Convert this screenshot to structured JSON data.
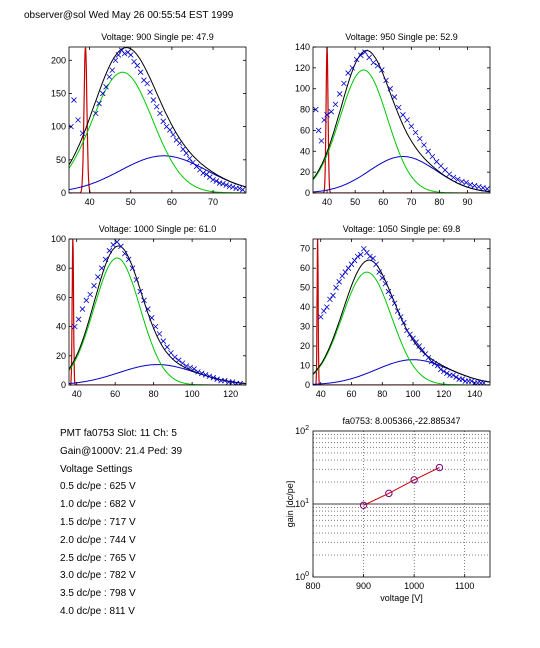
{
  "header": "observer@sol Wed May 26 00:55:54 EST 1999",
  "info": {
    "pmt_line": "PMT fa0753 Slot: 11 Ch: 5",
    "gain_line": "Gain@1000V: 21.4 Ped: 39",
    "settings_title": "Voltage Settings",
    "settings": [
      "0.5 dc/pe : 625 V",
      "1.0 dc/pe : 682 V",
      "1.5 dc/pe : 717 V",
      "2.0 dc/pe : 744 V",
      "2.5 dc/pe : 765 V",
      "3.0 dc/pe : 782 V",
      "3.5 dc/pe : 798 V",
      "4.0 dc/pe : 811 V"
    ]
  },
  "chart_data": [
    {
      "type": "line",
      "title": "Voltage: 900 Single pe: 47.9",
      "xlim": [
        35,
        78
      ],
      "ylim": [
        0,
        220
      ],
      "xticks": [
        40,
        50,
        60,
        70
      ],
      "yticks": [
        0,
        50,
        100,
        150,
        200
      ],
      "colors": {
        "total": "#000000",
        "single_pe": "#00c800",
        "double_pe": "#0000c8",
        "pedestal": "#c80000",
        "data": "#0000c8"
      },
      "components": {
        "single_pe": {
          "peak": 48,
          "amplitude": 182,
          "width": 7.3
        },
        "double_pe": {
          "peak": 58,
          "amplitude": 56,
          "width": 10.5
        },
        "pedestal": {
          "position": 39,
          "height": 220
        }
      },
      "data_points": [
        [
          35.5,
          100
        ],
        [
          36.2,
          140
        ],
        [
          37.2,
          110
        ],
        [
          38.3,
          90
        ],
        [
          41.5,
          120
        ],
        [
          42.3,
          135
        ],
        [
          43.2,
          150
        ],
        [
          44,
          160
        ],
        [
          44.8,
          175
        ],
        [
          45.5,
          185
        ],
        [
          46.3,
          200
        ],
        [
          47,
          208
        ],
        [
          47.8,
          215
        ],
        [
          48.5,
          210
        ],
        [
          49.3,
          212
        ],
        [
          50,
          208
        ],
        [
          50.8,
          198
        ],
        [
          51.6,
          192
        ],
        [
          52.4,
          182
        ],
        [
          53.2,
          170
        ],
        [
          54,
          165
        ],
        [
          54.7,
          152
        ],
        [
          55.5,
          140
        ],
        [
          56.3,
          130
        ],
        [
          57.1,
          120
        ],
        [
          57.9,
          108
        ],
        [
          58.7,
          100
        ],
        [
          59.5,
          95
        ],
        [
          60.3,
          88
        ],
        [
          61.1,
          80
        ],
        [
          61.9,
          75
        ],
        [
          62.7,
          66
        ],
        [
          63.5,
          60
        ],
        [
          64.3,
          52
        ],
        [
          65.1,
          46
        ],
        [
          66,
          40
        ],
        [
          66.8,
          35
        ],
        [
          67.6,
          30
        ],
        [
          68.4,
          28
        ],
        [
          69.2,
          24
        ],
        [
          70,
          20
        ],
        [
          70.8,
          18
        ],
        [
          71.6,
          15
        ],
        [
          72.4,
          14
        ],
        [
          73.2,
          12
        ],
        [
          74,
          10
        ],
        [
          74.8,
          9
        ],
        [
          75.6,
          7
        ],
        [
          76.4,
          7
        ],
        [
          77.2,
          5
        ]
      ]
    },
    {
      "type": "line",
      "title": "Voltage: 950 Single pe: 52.9",
      "xlim": [
        35,
        98
      ],
      "ylim": [
        0,
        140
      ],
      "xticks": [
        40,
        50,
        60,
        70,
        80,
        90
      ],
      "yticks": [
        0,
        20,
        40,
        60,
        80,
        100,
        120,
        140
      ],
      "colors": {
        "total": "#000000",
        "single_pe": "#00c800",
        "double_pe": "#0000c8",
        "pedestal": "#c80000",
        "data": "#0000c8"
      },
      "components": {
        "single_pe": {
          "peak": 53,
          "amplitude": 118,
          "width": 8.5
        },
        "double_pe": {
          "peak": 67,
          "amplitude": 35,
          "width": 12
        },
        "pedestal": {
          "position": 40,
          "height": 140
        }
      },
      "data_points": [
        [
          36,
          80
        ],
        [
          37,
          60
        ],
        [
          38,
          50
        ],
        [
          39,
          70
        ],
        [
          40,
          75
        ],
        [
          41.5,
          78
        ],
        [
          43,
          85
        ],
        [
          44.5,
          95
        ],
        [
          46,
          105
        ],
        [
          47.5,
          115
        ],
        [
          49,
          120
        ],
        [
          50.5,
          128
        ],
        [
          52,
          132
        ],
        [
          53.5,
          135
        ],
        [
          55,
          130
        ],
        [
          56.5,
          125
        ],
        [
          58,
          122
        ],
        [
          59.5,
          118
        ],
        [
          61,
          108
        ],
        [
          62.5,
          100
        ],
        [
          64,
          92
        ],
        [
          65.5,
          82
        ],
        [
          67,
          75
        ],
        [
          68.5,
          70
        ],
        [
          70,
          64
        ],
        [
          71.5,
          58
        ],
        [
          73,
          52
        ],
        [
          74.5,
          46
        ],
        [
          76,
          40
        ],
        [
          77.5,
          35
        ],
        [
          79,
          30
        ],
        [
          80.5,
          26
        ],
        [
          82,
          22
        ],
        [
          83.5,
          18
        ],
        [
          85,
          15
        ],
        [
          86.5,
          13
        ],
        [
          88,
          11
        ],
        [
          89.5,
          10
        ],
        [
          91,
          8
        ],
        [
          92.5,
          7
        ],
        [
          94,
          6
        ],
        [
          95.5,
          5
        ],
        [
          97,
          4
        ]
      ]
    },
    {
      "type": "line",
      "title": "Voltage: 1000 Single pe: 61.0",
      "xlim": [
        36,
        128
      ],
      "ylim": [
        0,
        100
      ],
      "xticks": [
        40,
        60,
        80,
        100,
        120
      ],
      "yticks": [
        0,
        20,
        40,
        60,
        80,
        100
      ],
      "colors": {
        "total": "#000000",
        "single_pe": "#00c800",
        "double_pe": "#0000c8",
        "pedestal": "#c80000",
        "data": "#0000c8"
      },
      "components": {
        "single_pe": {
          "peak": 61,
          "amplitude": 87,
          "width": 12
        },
        "double_pe": {
          "peak": 82,
          "amplitude": 14,
          "width": 20
        },
        "pedestal": {
          "position": 38,
          "height": 100
        }
      },
      "data_points": [
        [
          39,
          40
        ],
        [
          41,
          45
        ],
        [
          43,
          52
        ],
        [
          45,
          58
        ],
        [
          47,
          62
        ],
        [
          49,
          68
        ],
        [
          51,
          74
        ],
        [
          53,
          80
        ],
        [
          55,
          86
        ],
        [
          57,
          92
        ],
        [
          59,
          96
        ],
        [
          61,
          98
        ],
        [
          63,
          95
        ],
        [
          65,
          90
        ],
        [
          67,
          86
        ],
        [
          69,
          80
        ],
        [
          71,
          72
        ],
        [
          73,
          64
        ],
        [
          75,
          58
        ],
        [
          77,
          52
        ],
        [
          79,
          46
        ],
        [
          81,
          40
        ],
        [
          83,
          35
        ],
        [
          85,
          30
        ],
        [
          87,
          26
        ],
        [
          89,
          22
        ],
        [
          91,
          19
        ],
        [
          93,
          17
        ],
        [
          95,
          15
        ],
        [
          97,
          13
        ],
        [
          99,
          12
        ],
        [
          101,
          11
        ],
        [
          103,
          9
        ],
        [
          105,
          8
        ],
        [
          107,
          7
        ],
        [
          109,
          6
        ],
        [
          111,
          5
        ],
        [
          113,
          4
        ],
        [
          115,
          3
        ],
        [
          117,
          3
        ],
        [
          119,
          2
        ],
        [
          121,
          2
        ],
        [
          123,
          1
        ],
        [
          125,
          1
        ]
      ]
    },
    {
      "type": "line",
      "title": "Voltage: 1050 Single pe: 69.8",
      "xlim": [
        35,
        150
      ],
      "ylim": [
        0,
        75
      ],
      "xticks": [
        40,
        60,
        80,
        100,
        120,
        140
      ],
      "yticks": [
        0,
        10,
        20,
        30,
        40,
        50,
        60,
        70
      ],
      "colors": {
        "total": "#000000",
        "single_pe": "#00c800",
        "double_pe": "#0000c8",
        "pedestal": "#c80000",
        "data": "#0000c8"
      },
      "components": {
        "single_pe": {
          "peak": 70,
          "amplitude": 58,
          "width": 16
        },
        "double_pe": {
          "peak": 100,
          "amplitude": 13,
          "width": 24
        },
        "pedestal": {
          "position": 38,
          "height": 75
        }
      },
      "data_points": [
        [
          40,
          35
        ],
        [
          42,
          38
        ],
        [
          44,
          40
        ],
        [
          46,
          44
        ],
        [
          48,
          46
        ],
        [
          50,
          50
        ],
        [
          52,
          53
        ],
        [
          54,
          56
        ],
        [
          56,
          58
        ],
        [
          58,
          60
        ],
        [
          60,
          62
        ],
        [
          62,
          64
        ],
        [
          64,
          66
        ],
        [
          66,
          67
        ],
        [
          68,
          70
        ],
        [
          70,
          68
        ],
        [
          72,
          66
        ],
        [
          74,
          65
        ],
        [
          76,
          62
        ],
        [
          78,
          58
        ],
        [
          80,
          55
        ],
        [
          82,
          52
        ],
        [
          84,
          48
        ],
        [
          86,
          45
        ],
        [
          88,
          42
        ],
        [
          90,
          38
        ],
        [
          92,
          35
        ],
        [
          94,
          32
        ],
        [
          96,
          28
        ],
        [
          98,
          26
        ],
        [
          100,
          24
        ],
        [
          102,
          22
        ],
        [
          104,
          20
        ],
        [
          106,
          18
        ],
        [
          108,
          16
        ],
        [
          110,
          14
        ],
        [
          112,
          12
        ],
        [
          114,
          11
        ],
        [
          116,
          10
        ],
        [
          118,
          8
        ],
        [
          120,
          7
        ],
        [
          122,
          6
        ],
        [
          124,
          5
        ],
        [
          126,
          5
        ],
        [
          128,
          4
        ],
        [
          130,
          3
        ],
        [
          132,
          3
        ],
        [
          134,
          2
        ],
        [
          136,
          2
        ],
        [
          138,
          2
        ],
        [
          140,
          1
        ],
        [
          142,
          1
        ],
        [
          144,
          1
        ],
        [
          146,
          1
        ]
      ]
    },
    {
      "type": "line",
      "title": "fa0753: 8.005366,-22.885347",
      "xlabel": "voltage [V]",
      "ylabel": "gain [dc/pe]",
      "xlim": [
        800,
        1150
      ],
      "ylim": [
        1,
        100
      ],
      "yscale": "log",
      "grid": true,
      "xticks": [
        800,
        900,
        1000,
        1100
      ],
      "yticks": [
        1,
        10,
        100
      ],
      "ytick_labels": [
        "10^0",
        "10^1",
        "10^2"
      ],
      "colors": {
        "line": "#c80000",
        "markers": "#800080"
      },
      "x": [
        900,
        950,
        1000,
        1050
      ],
      "y": [
        9.6,
        14.0,
        21.4,
        31.6
      ]
    }
  ]
}
